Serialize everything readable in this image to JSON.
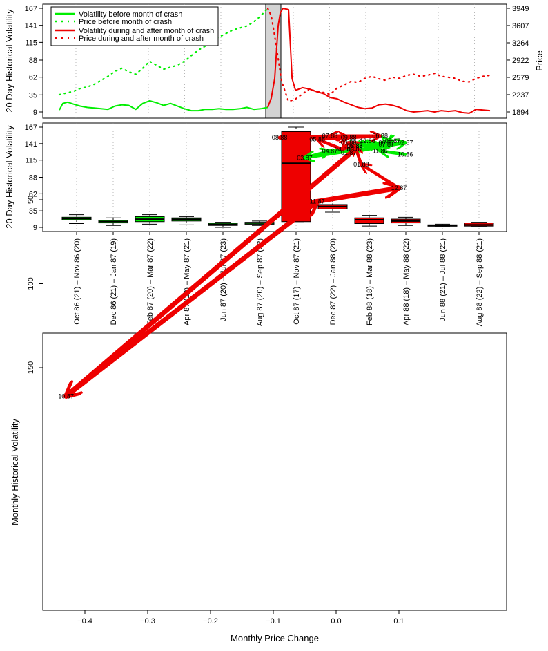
{
  "colors": {
    "before": "#00ee00",
    "after": "#ee0000",
    "shade": "#d3d3d3"
  },
  "chart_data": [
    {
      "type": "line",
      "panel": "top",
      "ylabel": "20 Day Historical Volatility",
      "ylabel_right": "Price",
      "yticks": [
        "167",
        "141",
        "115",
        "88",
        "62",
        "35",
        "9"
      ],
      "ytick_values": [
        167,
        141,
        115,
        88,
        62,
        35,
        9
      ],
      "yticks_right": [
        "3949",
        "3607",
        "3264",
        "2922",
        "2579",
        "2237",
        "1894"
      ],
      "ytick_right_values": [
        3949,
        3607,
        3264,
        2922,
        2579,
        2237,
        1894
      ],
      "legend": [
        {
          "label": "Volatility before month of crash",
          "style": "solid",
          "color": "green"
        },
        {
          "label": "Price before month of crash",
          "style": "dotted",
          "color": "green"
        },
        {
          "label": "Volatility during and after month of crash",
          "style": "solid",
          "color": "red"
        },
        {
          "label": "Price during and after month of crash",
          "style": "dotted",
          "color": "red"
        }
      ],
      "legend_position": "top-left",
      "shaded_period": "Oct 87 (crash month)",
      "series": [
        {
          "name": "Volatility before month of crash",
          "style": "solid",
          "color": "green",
          "x": [
            0,
            5,
            12,
            20,
            30,
            40,
            50,
            60,
            70,
            80,
            90,
            100,
            110,
            120,
            130,
            140,
            150,
            160,
            170,
            180,
            190,
            200,
            210,
            220,
            230,
            240,
            250,
            260,
            270,
            280,
            290,
            300
          ],
          "values": [
            12,
            22,
            24,
            21,
            18,
            16,
            15,
            14,
            13,
            18,
            20,
            19,
            13,
            22,
            26,
            23,
            19,
            22,
            18,
            14,
            11,
            11,
            13,
            13,
            14,
            13,
            13,
            14,
            16,
            13,
            14,
            16
          ]
        },
        {
          "name": "Price before month of crash",
          "style": "dotted",
          "color": "green",
          "x": [
            0,
            10,
            20,
            30,
            40,
            50,
            60,
            70,
            80,
            90,
            100,
            110,
            120,
            130,
            140,
            150,
            160,
            170,
            180,
            190,
            200,
            210,
            220,
            230,
            240,
            250,
            260,
            270,
            280,
            290,
            300
          ],
          "values": [
            2237,
            2270,
            2300,
            2360,
            2390,
            2440,
            2520,
            2600,
            2700,
            2760,
            2690,
            2640,
            2760,
            2900,
            2820,
            2740,
            2780,
            2820,
            2900,
            3010,
            3120,
            3200,
            3300,
            3380,
            3450,
            3520,
            3560,
            3600,
            3680,
            3800,
            3949
          ]
        },
        {
          "name": "Volatility during and after month of crash",
          "style": "solid",
          "color": "red",
          "x": [
            300,
            305,
            310,
            315,
            318,
            322,
            330,
            335,
            340,
            350,
            360,
            370,
            380,
            390,
            400,
            410,
            420,
            430,
            440,
            450,
            460,
            470,
            480,
            490,
            500,
            510,
            520,
            530,
            540,
            550,
            560,
            570,
            580,
            590,
            600,
            610,
            620
          ],
          "values": [
            16,
            30,
            60,
            140,
            160,
            167,
            165,
            60,
            42,
            46,
            44,
            40,
            37,
            31,
            29,
            24,
            20,
            16,
            14,
            15,
            20,
            21,
            19,
            16,
            11,
            9,
            10,
            11,
            9,
            11,
            10,
            11,
            8,
            7,
            13,
            12,
            11
          ]
        },
        {
          "name": "Price during and after month of crash",
          "style": "dotted",
          "color": "red",
          "x": [
            300,
            305,
            310,
            320,
            330,
            340,
            350,
            360,
            370,
            380,
            390,
            400,
            410,
            420,
            430,
            440,
            450,
            460,
            470,
            480,
            490,
            500,
            510,
            520,
            530,
            540,
            550,
            560,
            570,
            580,
            590,
            600,
            610,
            620
          ],
          "values": [
            3949,
            3800,
            3400,
            2500,
            2100,
            2150,
            2250,
            2350,
            2300,
            2280,
            2240,
            2370,
            2430,
            2500,
            2480,
            2560,
            2600,
            2550,
            2520,
            2580,
            2560,
            2620,
            2640,
            2600,
            2620,
            2660,
            2600,
            2580,
            2560,
            2500,
            2490,
            2560,
            2600,
            2620
          ]
        }
      ]
    },
    {
      "type": "box",
      "panel": "middle",
      "ylabel": "20 Day Historical Volatility",
      "yticks": [
        "167",
        "141",
        "115",
        "88",
        "62",
        "35",
        "9"
      ],
      "ytick_values": [
        167,
        141,
        115,
        88,
        62,
        35,
        9
      ],
      "categories": [
        "Oct 86 (21) – Nov 86 (20)",
        "Dec 86 (21) – Jan 87 (19)",
        "Feb 87 (20) – Mar 87 (22)",
        "Apr 87 (19) – May 87 (21)",
        "Jun 87 (20) – Jul 87 (23)",
        "Aug 87 (20) – Sep 87 (22)",
        "Oct 87 (17) – Nov 87 (21)",
        "Dec 87 (22) – Jan 88 (20)",
        "Feb 88 (18) – Mar 88 (23)",
        "Apr 88 (18) – May 88 (22)",
        "Jun 88 (21) – Jul 88 (21)",
        "Aug 88 (22) – Sep 88 (21)"
      ],
      "boxes": [
        {
          "color": "green",
          "min": 15,
          "q1": 21,
          "median": 23,
          "q3": 25,
          "max": 29
        },
        {
          "color": "green",
          "min": 12,
          "q1": 16,
          "median": 18,
          "q3": 20,
          "max": 24
        },
        {
          "color": "green",
          "min": 14,
          "q1": 18,
          "median": 22,
          "q3": 26,
          "max": 29
        },
        {
          "color": "green",
          "min": 13,
          "q1": 19,
          "median": 22,
          "q3": 24,
          "max": 26
        },
        {
          "color": "green",
          "min": 9,
          "q1": 12,
          "median": 14,
          "q3": 16,
          "max": 17
        },
        {
          "color": "green",
          "min": 12,
          "q1": 14,
          "median": 16,
          "q3": 17,
          "max": 19
        },
        {
          "color": "red",
          "min": 18,
          "q1": 18,
          "median": 110,
          "q3": 160,
          "max": 167
        },
        {
          "color": "red",
          "min": 33,
          "q1": 38,
          "median": 42,
          "q3": 45,
          "max": 52
        },
        {
          "color": "red",
          "min": 11,
          "q1": 15,
          "median": 21,
          "q3": 24,
          "max": 28
        },
        {
          "color": "red",
          "min": 12,
          "q1": 16,
          "median": 19,
          "q3": 22,
          "max": 25
        },
        {
          "color": "red",
          "min": 10,
          "q1": 11,
          "median": 12,
          "q3": 13,
          "max": 14
        },
        {
          "color": "red",
          "min": 10,
          "q1": 11,
          "median": 13,
          "q3": 16,
          "max": 17
        }
      ]
    },
    {
      "type": "scatter",
      "panel": "bottom",
      "xlabel": "Monthly Price Change",
      "ylabel": "Monthly Historical Volatility",
      "xticks": [
        "−0.4",
        "−0.3",
        "−0.2",
        "−0.1",
        "0.0",
        "0.1"
      ],
      "xtick_values": [
        -0.4,
        -0.3,
        -0.2,
        -0.1,
        0.0,
        0.1
      ],
      "yticks": [
        "50",
        "100",
        "150"
      ],
      "ytick_values": [
        50,
        100,
        150
      ],
      "xlim": [
        -0.46,
        0.14
      ],
      "ylim": [
        8,
        172
      ],
      "points": [
        {
          "label": "10.86",
          "x": 0.11,
          "y": 23,
          "color": "green"
        },
        {
          "label": "11.86",
          "x": 0.07,
          "y": 21,
          "color": "green"
        },
        {
          "label": "12.86",
          "x": 0.05,
          "y": 15,
          "color": "green"
        },
        {
          "label": "01.87",
          "x": 0.02,
          "y": 22,
          "color": "green"
        },
        {
          "label": "02.87",
          "x": 0.11,
          "y": 16,
          "color": "green"
        },
        {
          "label": "03.87",
          "x": -0.05,
          "y": 25,
          "color": "green"
        },
        {
          "label": "04.87",
          "x": -0.01,
          "y": 21,
          "color": "green"
        },
        {
          "label": "05.87",
          "x": 0.09,
          "y": 15,
          "color": "green"
        },
        {
          "label": "06.87",
          "x": 0.08,
          "y": 16,
          "color": "green"
        },
        {
          "label": "07.87",
          "x": 0.08,
          "y": 17,
          "color": "green"
        },
        {
          "label": "08.87",
          "x": 0.03,
          "y": 18,
          "color": "green"
        },
        {
          "label": "09.87",
          "x": 0.03,
          "y": 20,
          "color": "green"
        },
        {
          "label": "10.87",
          "x": -0.43,
          "y": 167,
          "color": "red"
        },
        {
          "label": "11.87",
          "x": -0.03,
          "y": 51,
          "color": "red"
        },
        {
          "label": "12.87",
          "x": 0.1,
          "y": 43,
          "color": "red"
        },
        {
          "label": "01.88",
          "x": 0.04,
          "y": 29,
          "color": "red"
        },
        {
          "label": "02.88",
          "x": 0.03,
          "y": 18,
          "color": "red"
        },
        {
          "label": "03.88",
          "x": 0.02,
          "y": 16,
          "color": "red"
        },
        {
          "label": "04.88",
          "x": 0.01,
          "y": 20,
          "color": "red"
        },
        {
          "label": "05.88",
          "x": -0.03,
          "y": 14,
          "color": "red"
        },
        {
          "label": "06.88",
          "x": 0.07,
          "y": 12,
          "color": "red"
        },
        {
          "label": "07.88",
          "x": -0.01,
          "y": 12,
          "color": "red"
        },
        {
          "label": "08.88",
          "x": -0.09,
          "y": 13,
          "color": "red"
        },
        {
          "label": "09.88",
          "x": 0.02,
          "y": 13,
          "color": "red"
        }
      ]
    }
  ]
}
